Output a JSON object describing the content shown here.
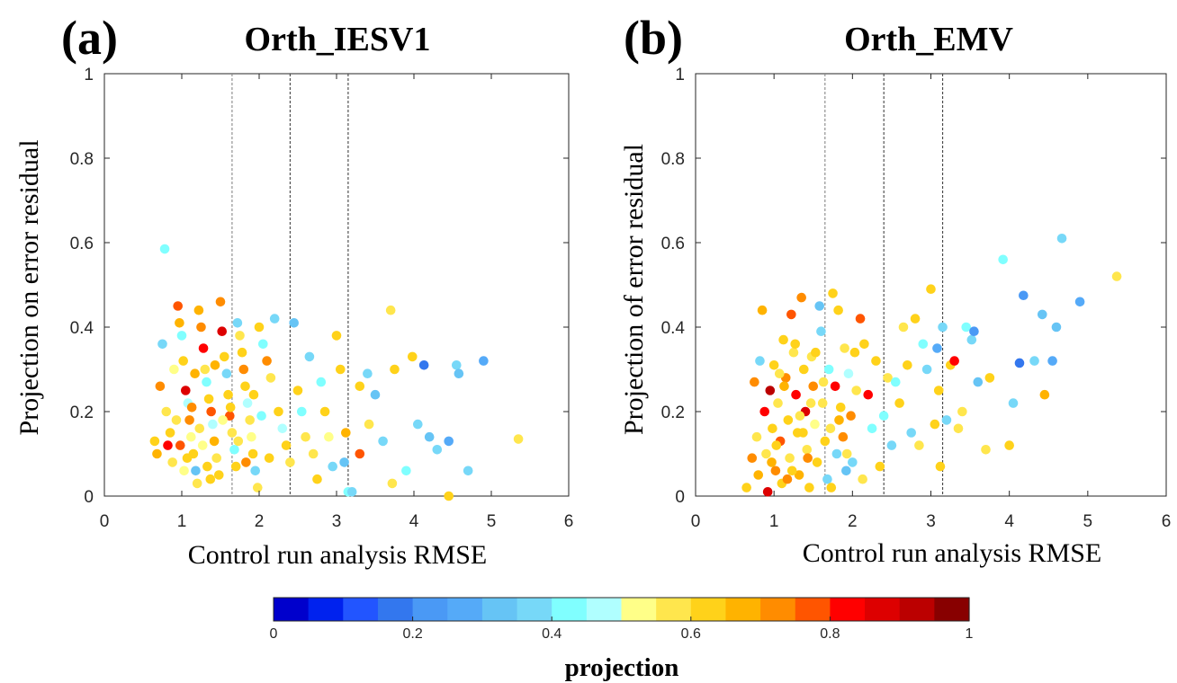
{
  "figure": {
    "colormap": [
      "#0000cc",
      "#0022ee",
      "#2255ff",
      "#3377ee",
      "#4a99f5",
      "#55aaf8",
      "#66c4f5",
      "#77d8f8",
      "#80ffff",
      "#b0ffff",
      "#ffff88",
      "#ffe64d",
      "#ffd21a",
      "#ffb300",
      "#ff8c00",
      "#ff5500",
      "#ff0000",
      "#dd0000",
      "#bb0000",
      "#880000"
    ],
    "colorbar": {
      "label": "projection",
      "ticks": [
        "0",
        "0.2",
        "0.4",
        "0.6",
        "0.8",
        "1"
      ],
      "range": [
        0,
        1
      ]
    }
  },
  "chart_data": [
    {
      "type": "scatter",
      "panel_label": "(a)",
      "title": "Orth_IESV1",
      "xlabel": "Control run analysis RMSE",
      "ylabel": "Projection on error residual",
      "xlim": [
        0,
        6
      ],
      "ylim": [
        0,
        1
      ],
      "xticks": [
        "0",
        "1",
        "2",
        "3",
        "4",
        "5",
        "6"
      ],
      "yticks": [
        "0",
        "0.2",
        "0.4",
        "0.6",
        "0.8",
        "1"
      ],
      "vlines": [
        1.65,
        2.4,
        3.15
      ],
      "points": [
        [
          0.78,
          0.585,
          0.4
        ],
        [
          0.75,
          0.36,
          0.35
        ],
        [
          0.65,
          0.13,
          0.62
        ],
        [
          0.68,
          0.1,
          0.65
        ],
        [
          0.72,
          0.26,
          0.7
        ],
        [
          0.8,
          0.2,
          0.55
        ],
        [
          0.82,
          0.12,
          0.82
        ],
        [
          0.85,
          0.15,
          0.6
        ],
        [
          0.88,
          0.08,
          0.55
        ],
        [
          0.9,
          0.3,
          0.5
        ],
        [
          0.95,
          0.45,
          0.75
        ],
        [
          0.97,
          0.41,
          0.68
        ],
        [
          1.0,
          0.38,
          0.42
        ],
        [
          1.02,
          0.32,
          0.6
        ],
        [
          1.05,
          0.25,
          0.85
        ],
        [
          1.08,
          0.22,
          0.45
        ],
        [
          1.1,
          0.18,
          0.7
        ],
        [
          1.12,
          0.14,
          0.5
        ],
        [
          1.15,
          0.1,
          0.62
        ],
        [
          1.18,
          0.06,
          0.3
        ],
        [
          1.2,
          0.03,
          0.55
        ],
        [
          1.22,
          0.44,
          0.65
        ],
        [
          1.25,
          0.4,
          0.72
        ],
        [
          1.28,
          0.35,
          0.8
        ],
        [
          1.3,
          0.3,
          0.55
        ],
        [
          1.32,
          0.27,
          0.4
        ],
        [
          1.35,
          0.23,
          0.62
        ],
        [
          1.38,
          0.2,
          0.75
        ],
        [
          1.4,
          0.17,
          0.48
        ],
        [
          1.42,
          0.13,
          0.66
        ],
        [
          1.45,
          0.09,
          0.58
        ],
        [
          1.48,
          0.05,
          0.6
        ],
        [
          1.5,
          0.46,
          0.7
        ],
        [
          1.52,
          0.39,
          0.88
        ],
        [
          1.55,
          0.33,
          0.62
        ],
        [
          1.58,
          0.29,
          0.35
        ],
        [
          1.6,
          0.24,
          0.6
        ],
        [
          1.62,
          0.19,
          0.78
        ],
        [
          1.65,
          0.15,
          0.55
        ],
        [
          1.68,
          0.11,
          0.42
        ],
        [
          1.7,
          0.07,
          0.6
        ],
        [
          1.72,
          0.41,
          0.36
        ],
        [
          1.75,
          0.38,
          0.55
        ],
        [
          1.78,
          0.34,
          0.6
        ],
        [
          1.8,
          0.3,
          0.7
        ],
        [
          1.82,
          0.26,
          0.62
        ],
        [
          1.85,
          0.22,
          0.45
        ],
        [
          1.88,
          0.18,
          0.58
        ],
        [
          1.9,
          0.14,
          0.5
        ],
        [
          1.92,
          0.1,
          0.6
        ],
        [
          1.95,
          0.06,
          0.38
        ],
        [
          1.98,
          0.02,
          0.58
        ],
        [
          2.0,
          0.4,
          0.6
        ],
        [
          2.05,
          0.36,
          0.42
        ],
        [
          2.1,
          0.32,
          0.7
        ],
        [
          2.15,
          0.28,
          0.55
        ],
        [
          2.2,
          0.42,
          0.38
        ],
        [
          2.25,
          0.2,
          0.6
        ],
        [
          2.3,
          0.16,
          0.45
        ],
        [
          2.35,
          0.12,
          0.62
        ],
        [
          2.4,
          0.08,
          0.55
        ],
        [
          2.45,
          0.41,
          0.3
        ],
        [
          2.5,
          0.25,
          0.6
        ],
        [
          2.55,
          0.2,
          0.42
        ],
        [
          2.6,
          0.14,
          0.58
        ],
        [
          2.65,
          0.33,
          0.38
        ],
        [
          2.7,
          0.1,
          0.55
        ],
        [
          2.75,
          0.04,
          0.6
        ],
        [
          2.8,
          0.27,
          0.4
        ],
        [
          2.85,
          0.2,
          0.62
        ],
        [
          2.9,
          0.14,
          0.5
        ],
        [
          2.95,
          0.07,
          0.35
        ],
        [
          3.0,
          0.38,
          0.62
        ],
        [
          3.05,
          0.3,
          0.6
        ],
        [
          3.1,
          0.08,
          0.32
        ],
        [
          3.12,
          0.15,
          0.65
        ],
        [
          3.15,
          0.01,
          0.4
        ],
        [
          3.2,
          0.01,
          0.35
        ],
        [
          3.3,
          0.26,
          0.6
        ],
        [
          3.3,
          0.1,
          0.78
        ],
        [
          3.4,
          0.29,
          0.38
        ],
        [
          3.42,
          0.17,
          0.58
        ],
        [
          3.5,
          0.24,
          0.3
        ],
        [
          3.6,
          0.13,
          0.38
        ],
        [
          3.7,
          0.44,
          0.55
        ],
        [
          3.72,
          0.03,
          0.55
        ],
        [
          3.75,
          0.3,
          0.62
        ],
        [
          3.9,
          0.06,
          0.42
        ],
        [
          3.98,
          0.33,
          0.6
        ],
        [
          4.05,
          0.17,
          0.38
        ],
        [
          4.13,
          0.31,
          0.15
        ],
        [
          4.2,
          0.14,
          0.3
        ],
        [
          4.3,
          0.11,
          0.38
        ],
        [
          4.45,
          0.13,
          0.25
        ],
        [
          4.45,
          0.0,
          0.62
        ],
        [
          4.55,
          0.31,
          0.35
        ],
        [
          4.58,
          0.29,
          0.32
        ],
        [
          4.7,
          0.06,
          0.36
        ],
        [
          4.9,
          0.32,
          0.28
        ],
        [
          5.35,
          0.135,
          0.55
        ],
        [
          1.03,
          0.06,
          0.52
        ],
        [
          1.13,
          0.21,
          0.72
        ],
        [
          1.23,
          0.16,
          0.58
        ],
        [
          1.33,
          0.07,
          0.62
        ],
        [
          1.43,
          0.31,
          0.68
        ],
        [
          1.53,
          0.18,
          0.52
        ],
        [
          1.63,
          0.21,
          0.62
        ],
        [
          1.73,
          0.13,
          0.58
        ],
        [
          1.83,
          0.08,
          0.7
        ],
        [
          1.93,
          0.24,
          0.6
        ],
        [
          2.03,
          0.19,
          0.42
        ],
        [
          2.13,
          0.09,
          0.6
        ],
        [
          0.93,
          0.18,
          0.56
        ],
        [
          0.98,
          0.12,
          0.78
        ],
        [
          1.07,
          0.09,
          0.62
        ],
        [
          1.17,
          0.29,
          0.66
        ],
        [
          1.27,
          0.12,
          0.54
        ],
        [
          1.37,
          0.04,
          0.6
        ]
      ]
    },
    {
      "type": "scatter",
      "panel_label": "(b)",
      "title": "Orth_EMV",
      "xlabel": "Control run analysis RMSE",
      "ylabel": "Projection of error residual",
      "xlim": [
        0,
        6
      ],
      "ylim": [
        0,
        1
      ],
      "xticks": [
        "0",
        "1",
        "2",
        "3",
        "4",
        "5",
        "6"
      ],
      "yticks": [
        "0",
        "0.2",
        "0.4",
        "0.6",
        "0.8",
        "1"
      ],
      "vlines": [
        1.65,
        2.4,
        3.15
      ],
      "points": [
        [
          0.65,
          0.02,
          0.6
        ],
        [
          0.72,
          0.09,
          0.7
        ],
        [
          0.75,
          0.27,
          0.72
        ],
        [
          0.78,
          0.14,
          0.55
        ],
        [
          0.8,
          0.05,
          0.65
        ],
        [
          0.82,
          0.32,
          0.38
        ],
        [
          0.85,
          0.44,
          0.68
        ],
        [
          0.88,
          0.2,
          0.82
        ],
        [
          0.9,
          0.1,
          0.58
        ],
        [
          0.92,
          0.01,
          0.85
        ],
        [
          0.95,
          0.25,
          0.9
        ],
        [
          0.98,
          0.16,
          0.62
        ],
        [
          1.0,
          0.31,
          0.6
        ],
        [
          1.02,
          0.06,
          0.7
        ],
        [
          1.05,
          0.22,
          0.55
        ],
        [
          1.08,
          0.13,
          0.78
        ],
        [
          1.1,
          0.03,
          0.62
        ],
        [
          1.12,
          0.37,
          0.6
        ],
        [
          1.15,
          0.28,
          0.72
        ],
        [
          1.18,
          0.18,
          0.6
        ],
        [
          1.2,
          0.09,
          0.55
        ],
        [
          1.22,
          0.43,
          0.78
        ],
        [
          1.25,
          0.34,
          0.55
        ],
        [
          1.28,
          0.24,
          0.82
        ],
        [
          1.3,
          0.15,
          0.6
        ],
        [
          1.32,
          0.05,
          0.66
        ],
        [
          1.35,
          0.47,
          0.7
        ],
        [
          1.38,
          0.3,
          0.62
        ],
        [
          1.4,
          0.2,
          0.88
        ],
        [
          1.42,
          0.11,
          0.56
        ],
        [
          1.45,
          0.02,
          0.6
        ],
        [
          1.48,
          0.33,
          0.55
        ],
        [
          1.5,
          0.26,
          0.7
        ],
        [
          1.52,
          0.17,
          0.52
        ],
        [
          1.55,
          0.08,
          0.62
        ],
        [
          1.58,
          0.45,
          0.3
        ],
        [
          1.6,
          0.39,
          0.36
        ],
        [
          1.62,
          0.22,
          0.55
        ],
        [
          1.65,
          0.13,
          0.62
        ],
        [
          1.68,
          0.04,
          0.38
        ],
        [
          1.7,
          0.3,
          0.42
        ],
        [
          1.72,
          0.16,
          0.55
        ],
        [
          1.75,
          0.48,
          0.6
        ],
        [
          1.78,
          0.26,
          0.82
        ],
        [
          1.8,
          0.1,
          0.36
        ],
        [
          1.82,
          0.44,
          0.62
        ],
        [
          1.85,
          0.21,
          0.6
        ],
        [
          1.88,
          0.14,
          0.72
        ],
        [
          1.9,
          0.35,
          0.55
        ],
        [
          1.92,
          0.06,
          0.3
        ],
        [
          1.95,
          0.29,
          0.48
        ],
        [
          1.98,
          0.19,
          0.7
        ],
        [
          2.0,
          0.08,
          0.38
        ],
        [
          2.05,
          0.25,
          0.55
        ],
        [
          2.1,
          0.42,
          0.75
        ],
        [
          2.15,
          0.36,
          0.6
        ],
        [
          2.2,
          0.24,
          0.8
        ],
        [
          2.25,
          0.16,
          0.42
        ],
        [
          2.3,
          0.32,
          0.6
        ],
        [
          2.35,
          0.07,
          0.62
        ],
        [
          2.4,
          0.19,
          0.4
        ],
        [
          2.45,
          0.28,
          0.55
        ],
        [
          2.5,
          0.12,
          0.35
        ],
        [
          2.55,
          0.27,
          0.42
        ],
        [
          2.6,
          0.22,
          0.6
        ],
        [
          2.65,
          0.4,
          0.58
        ],
        [
          2.7,
          0.31,
          0.6
        ],
        [
          2.75,
          0.15,
          0.38
        ],
        [
          2.8,
          0.42,
          0.6
        ],
        [
          2.85,
          0.12,
          0.55
        ],
        [
          2.9,
          0.36,
          0.4
        ],
        [
          2.95,
          0.3,
          0.36
        ],
        [
          3.0,
          0.49,
          0.6
        ],
        [
          3.05,
          0.17,
          0.6
        ],
        [
          3.08,
          0.35,
          0.25
        ],
        [
          3.1,
          0.25,
          0.62
        ],
        [
          3.12,
          0.07,
          0.6
        ],
        [
          3.15,
          0.4,
          0.38
        ],
        [
          3.2,
          0.18,
          0.35
        ],
        [
          3.25,
          0.31,
          0.62
        ],
        [
          3.3,
          0.32,
          0.82
        ],
        [
          3.35,
          0.16,
          0.55
        ],
        [
          3.4,
          0.2,
          0.58
        ],
        [
          3.45,
          0.4,
          0.4
        ],
        [
          3.52,
          0.37,
          0.38
        ],
        [
          3.55,
          0.39,
          0.22
        ],
        [
          3.6,
          0.27,
          0.3
        ],
        [
          3.7,
          0.11,
          0.58
        ],
        [
          3.75,
          0.28,
          0.62
        ],
        [
          3.92,
          0.56,
          0.42
        ],
        [
          4.0,
          0.12,
          0.6
        ],
        [
          4.05,
          0.22,
          0.38
        ],
        [
          4.13,
          0.315,
          0.15
        ],
        [
          4.18,
          0.475,
          0.22
        ],
        [
          4.32,
          0.32,
          0.35
        ],
        [
          4.42,
          0.43,
          0.3
        ],
        [
          4.45,
          0.24,
          0.65
        ],
        [
          4.55,
          0.32,
          0.28
        ],
        [
          4.6,
          0.4,
          0.32
        ],
        [
          4.67,
          0.61,
          0.36
        ],
        [
          4.9,
          0.46,
          0.28
        ],
        [
          5.37,
          0.52,
          0.55
        ],
        [
          1.03,
          0.12,
          0.6
        ],
        [
          1.13,
          0.26,
          0.68
        ],
        [
          1.23,
          0.06,
          0.62
        ],
        [
          1.33,
          0.19,
          0.56
        ],
        [
          1.43,
          0.09,
          0.72
        ],
        [
          1.53,
          0.34,
          0.6
        ],
        [
          1.63,
          0.27,
          0.55
        ],
        [
          1.73,
          0.02,
          0.62
        ],
        [
          1.83,
          0.18,
          0.66
        ],
        [
          1.93,
          0.1,
          0.58
        ],
        [
          2.03,
          0.34,
          0.62
        ],
        [
          2.13,
          0.04,
          0.58
        ],
        [
          0.97,
          0.08,
          0.66
        ],
        [
          1.07,
          0.29,
          0.58
        ],
        [
          1.17,
          0.04,
          0.7
        ],
        [
          1.27,
          0.36,
          0.6
        ],
        [
          1.37,
          0.15,
          0.64
        ],
        [
          1.47,
          0.22,
          0.58
        ]
      ]
    }
  ]
}
